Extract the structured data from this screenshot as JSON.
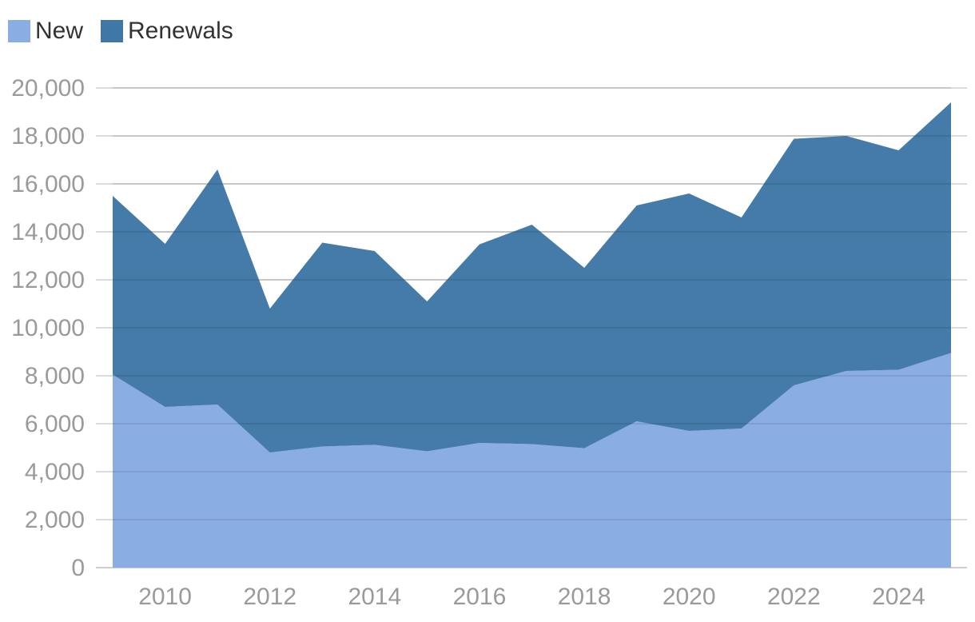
{
  "chart_data": {
    "type": "area",
    "stacked": true,
    "title": "",
    "xlabel": "",
    "ylabel": "",
    "x": [
      2009,
      2010,
      2011,
      2012,
      2013,
      2014,
      2015,
      2016,
      2017,
      2018,
      2019,
      2020,
      2021,
      2022,
      2023,
      2024,
      2025
    ],
    "series": [
      {
        "name": "New",
        "color": "#8aaee3",
        "values": [
          8050,
          6700,
          6800,
          4800,
          5050,
          5120,
          4850,
          5200,
          5150,
          4980,
          6100,
          5700,
          5800,
          7600,
          8200,
          8250,
          8950
        ]
      },
      {
        "name": "Renewals",
        "color": "#3f77a6",
        "values": [
          7450,
          6800,
          9800,
          6000,
          8500,
          8080,
          6250,
          8280,
          9150,
          7520,
          9000,
          9900,
          8800,
          10280,
          9800,
          9150,
          10450
        ]
      }
    ],
    "ylim": [
      0,
      20000
    ],
    "yticks": [
      0,
      2000,
      4000,
      6000,
      8000,
      10000,
      12000,
      14000,
      16000,
      18000,
      20000
    ],
    "ytick_labels": [
      "0",
      "2,000",
      "4,000",
      "6,000",
      "8,000",
      "10,000",
      "12,000",
      "14,000",
      "16,000",
      "18,000",
      "20,000"
    ],
    "xticks": [
      2010,
      2012,
      2014,
      2016,
      2018,
      2020,
      2022,
      2024
    ],
    "xtick_labels": [
      "2010",
      "2012",
      "2014",
      "2016",
      "2018",
      "2020",
      "2022",
      "2024"
    ],
    "grid": true,
    "legend": "top-left"
  }
}
